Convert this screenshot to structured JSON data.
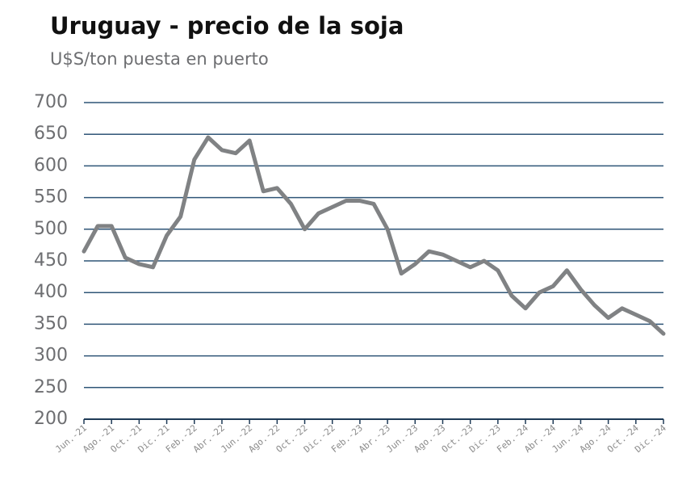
{
  "chart_data": {
    "type": "line",
    "title": "Uruguay - precio de la soja",
    "subtitle": "U$S/ton puesta en puerto",
    "categories": [
      "Jun.-21",
      null,
      "Ago.-21",
      null,
      "Oct.-21",
      null,
      "Dic.-21",
      null,
      "Feb.-22",
      null,
      "Abr.-22",
      null,
      "Jun.-22",
      null,
      "Ago.-22",
      null,
      "Oct.-22",
      null,
      "Dic.-22",
      null,
      "Feb.-23",
      null,
      "Abr.-23",
      null,
      "Jun.-23",
      null,
      "Ago.-23",
      null,
      "Oct.-23",
      null,
      "Dic.-23",
      null,
      "Feb.-24",
      null,
      "Abr.-24",
      null,
      "Jun.-24",
      null,
      "Ago.-24",
      null,
      "Oct.-24",
      null,
      "Dic.-24"
    ],
    "values": [
      465,
      505,
      505,
      455,
      445,
      440,
      490,
      520,
      610,
      645,
      625,
      620,
      640,
      560,
      565,
      540,
      500,
      525,
      535,
      545,
      545,
      540,
      500,
      430,
      445,
      465,
      460,
      450,
      440,
      450,
      435,
      395,
      375,
      400,
      410,
      435,
      405,
      380,
      360,
      375,
      365,
      355,
      335
    ],
    "color": "#808284",
    "ylim": [
      200,
      700
    ],
    "yticks": [
      200,
      250,
      300,
      350,
      400,
      450,
      500,
      550,
      600,
      650,
      700
    ],
    "grid": true
  }
}
